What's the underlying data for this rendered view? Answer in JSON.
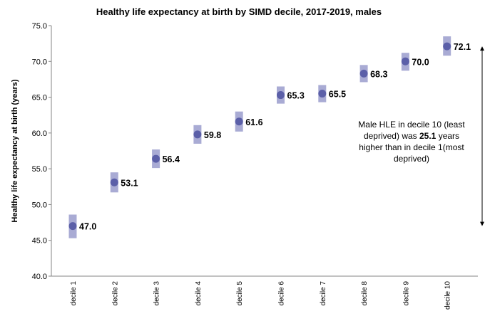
{
  "chart_data": {
    "type": "scatter",
    "title": "Healthy life expectancy at birth by SIMD decile, 2017-2019, males",
    "ylabel": "Healthy life expectancy at birth (years)",
    "xlabel": "",
    "ylim": [
      40,
      75
    ],
    "yticks": [
      "40.0",
      "45.0",
      "50.0",
      "55.0",
      "60.0",
      "65.0",
      "70.0",
      "75.0"
    ],
    "categories": [
      "decile 1",
      "decile 2",
      "decile 3",
      "decile 4",
      "decile 5",
      "decile 6",
      "decile 7",
      "decile 8",
      "decile 9",
      "decile 10"
    ],
    "values": [
      47.0,
      53.1,
      56.4,
      59.8,
      61.6,
      65.3,
      65.5,
      68.3,
      70.0,
      72.1
    ],
    "value_labels": [
      "47.0",
      "53.1",
      "56.4",
      "59.8",
      "61.6",
      "65.3",
      "65.5",
      "68.3",
      "70.0",
      "72.1"
    ],
    "ci_lower": [
      45.3,
      51.7,
      55.1,
      58.5,
      60.2,
      64.1,
      64.3,
      67.1,
      68.7,
      70.8
    ],
    "ci_upper": [
      48.6,
      54.5,
      57.7,
      61.1,
      63.0,
      66.5,
      66.7,
      69.5,
      71.2,
      73.5
    ],
    "grid": false,
    "legend": "none",
    "colors": {
      "point": "#5b5fa8",
      "ci": "#a9abd4"
    },
    "annotation": {
      "line1": "Male HLE in decile 10 (least",
      "line2_pre": "deprived) was ",
      "line2_bold": "25.1",
      "line2_post": " years",
      "line3": "higher than  in decile 1(most",
      "line4": "deprived)"
    },
    "arrow": {
      "from": 47.0,
      "to": 72.1
    }
  }
}
